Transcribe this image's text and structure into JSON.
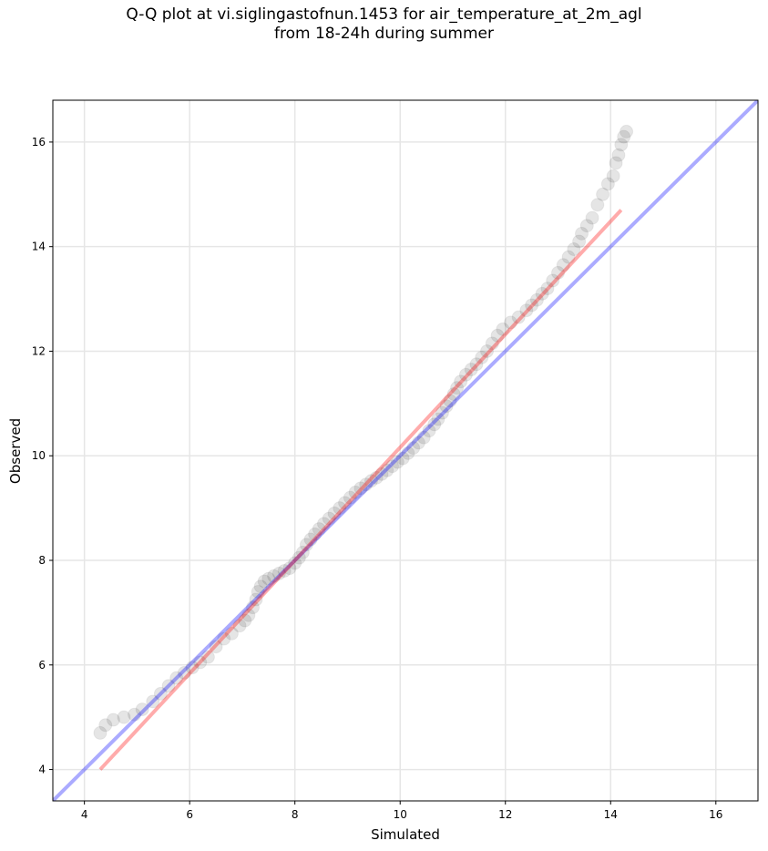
{
  "chart_data": {
    "type": "scatter",
    "title": [
      "Q-Q plot at vi.siglingastofnun.1453 for air_temperature_at_2m_agl",
      "from 18-24h during summer"
    ],
    "xlabel": "Simulated",
    "ylabel": "Observed",
    "xlim": [
      3.4,
      16.8
    ],
    "ylim": [
      3.4,
      16.8
    ],
    "xticks": [
      4,
      6,
      8,
      10,
      12,
      14,
      16
    ],
    "yticks": [
      4,
      6,
      8,
      10,
      12,
      14,
      16
    ],
    "grid": true,
    "reference_lines": [
      {
        "label": "1:1 line",
        "color": "#0000ff",
        "x": [
          3.4,
          16.8
        ],
        "y": [
          3.4,
          16.8
        ]
      },
      {
        "label": "fit line",
        "color": "#ff0000",
        "x": [
          4.3,
          14.2
        ],
        "y": [
          4.0,
          14.7
        ]
      }
    ],
    "quantiles": [
      [
        4.3,
        4.7
      ],
      [
        4.4,
        4.85
      ],
      [
        4.55,
        4.95
      ],
      [
        4.75,
        5.0
      ],
      [
        4.95,
        5.05
      ],
      [
        5.1,
        5.15
      ],
      [
        5.3,
        5.3
      ],
      [
        5.45,
        5.45
      ],
      [
        5.6,
        5.6
      ],
      [
        5.75,
        5.75
      ],
      [
        5.9,
        5.85
      ],
      [
        6.05,
        5.95
      ],
      [
        6.2,
        6.05
      ],
      [
        6.35,
        6.15
      ],
      [
        6.5,
        6.35
      ],
      [
        6.65,
        6.5
      ],
      [
        6.8,
        6.6
      ],
      [
        6.95,
        6.75
      ],
      [
        7.05,
        6.85
      ],
      [
        7.12,
        6.95
      ],
      [
        7.2,
        7.1
      ],
      [
        7.26,
        7.25
      ],
      [
        7.3,
        7.4
      ],
      [
        7.35,
        7.5
      ],
      [
        7.42,
        7.6
      ],
      [
        7.5,
        7.65
      ],
      [
        7.6,
        7.7
      ],
      [
        7.7,
        7.75
      ],
      [
        7.8,
        7.8
      ],
      [
        7.9,
        7.85
      ],
      [
        8.0,
        7.95
      ],
      [
        8.08,
        8.05
      ],
      [
        8.15,
        8.15
      ],
      [
        8.22,
        8.3
      ],
      [
        8.3,
        8.4
      ],
      [
        8.38,
        8.5
      ],
      [
        8.46,
        8.6
      ],
      [
        8.55,
        8.7
      ],
      [
        8.65,
        8.8
      ],
      [
        8.75,
        8.9
      ],
      [
        8.85,
        9.0
      ],
      [
        8.95,
        9.1
      ],
      [
        9.05,
        9.2
      ],
      [
        9.15,
        9.3
      ],
      [
        9.25,
        9.38
      ],
      [
        9.35,
        9.45
      ],
      [
        9.45,
        9.52
      ],
      [
        9.55,
        9.58
      ],
      [
        9.65,
        9.65
      ],
      [
        9.75,
        9.72
      ],
      [
        9.85,
        9.8
      ],
      [
        9.95,
        9.88
      ],
      [
        10.05,
        9.95
      ],
      [
        10.15,
        10.05
      ],
      [
        10.25,
        10.15
      ],
      [
        10.35,
        10.25
      ],
      [
        10.45,
        10.35
      ],
      [
        10.55,
        10.48
      ],
      [
        10.65,
        10.6
      ],
      [
        10.72,
        10.7
      ],
      [
        10.8,
        10.82
      ],
      [
        10.88,
        10.95
      ],
      [
        10.95,
        11.05
      ],
      [
        11.02,
        11.18
      ],
      [
        11.08,
        11.3
      ],
      [
        11.15,
        11.42
      ],
      [
        11.25,
        11.55
      ],
      [
        11.35,
        11.65
      ],
      [
        11.45,
        11.75
      ],
      [
        11.55,
        11.88
      ],
      [
        11.65,
        12.0
      ],
      [
        11.75,
        12.15
      ],
      [
        11.85,
        12.3
      ],
      [
        11.95,
        12.42
      ],
      [
        12.1,
        12.55
      ],
      [
        12.25,
        12.65
      ],
      [
        12.4,
        12.78
      ],
      [
        12.5,
        12.88
      ],
      [
        12.6,
        12.98
      ],
      [
        12.7,
        13.1
      ],
      [
        12.8,
        13.2
      ],
      [
        12.9,
        13.35
      ],
      [
        13.0,
        13.5
      ],
      [
        13.1,
        13.65
      ],
      [
        13.2,
        13.8
      ],
      [
        13.3,
        13.95
      ],
      [
        13.4,
        14.1
      ],
      [
        13.45,
        14.25
      ],
      [
        13.55,
        14.4
      ],
      [
        13.65,
        14.55
      ],
      [
        13.75,
        14.8
      ],
      [
        13.85,
        15.0
      ],
      [
        13.95,
        15.2
      ],
      [
        14.05,
        15.35
      ],
      [
        14.1,
        15.6
      ],
      [
        14.15,
        15.75
      ],
      [
        14.2,
        15.95
      ],
      [
        14.25,
        16.1
      ],
      [
        14.3,
        16.2
      ]
    ]
  }
}
